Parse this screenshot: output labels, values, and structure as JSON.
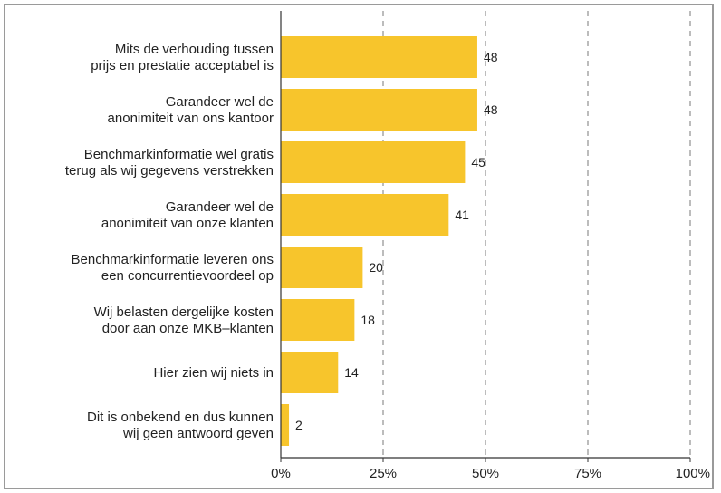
{
  "chart_data": {
    "type": "bar",
    "orientation": "horizontal",
    "categories": [
      [
        "Mits de verhouding tussen",
        "prijs en prestatie acceptabel is"
      ],
      [
        "Garandeer wel de",
        "anonimiteit van ons kantoor"
      ],
      [
        "Benchmarkinformatie wel gratis",
        "terug als wij gegevens verstrekken"
      ],
      [
        "Garandeer wel de",
        "anonimiteit van onze klanten"
      ],
      [
        "Benchmarkinformatie leveren ons",
        "een concurrentievoordeel op"
      ],
      [
        "Wij belasten dergelijke kosten",
        "door aan onze MKB–klanten"
      ],
      [
        "Hier zien wij niets in"
      ],
      [
        "Dit is onbekend en dus kunnen",
        "wij geen antwoord geven"
      ]
    ],
    "values": [
      48,
      48,
      45,
      41,
      20,
      18,
      14,
      2
    ],
    "value_labels": [
      "48",
      "48",
      "45",
      "41",
      "20",
      "18",
      "14",
      "2"
    ],
    "xlim": [
      0,
      100
    ],
    "xticks": [
      0,
      25,
      50,
      75,
      100
    ],
    "xtick_labels": [
      "0%",
      "25%",
      "50%",
      "75%",
      "100%"
    ],
    "grid": "vertical dashed",
    "bar_color": "#f7c52c",
    "title": "",
    "xlabel": "",
    "ylabel": ""
  }
}
